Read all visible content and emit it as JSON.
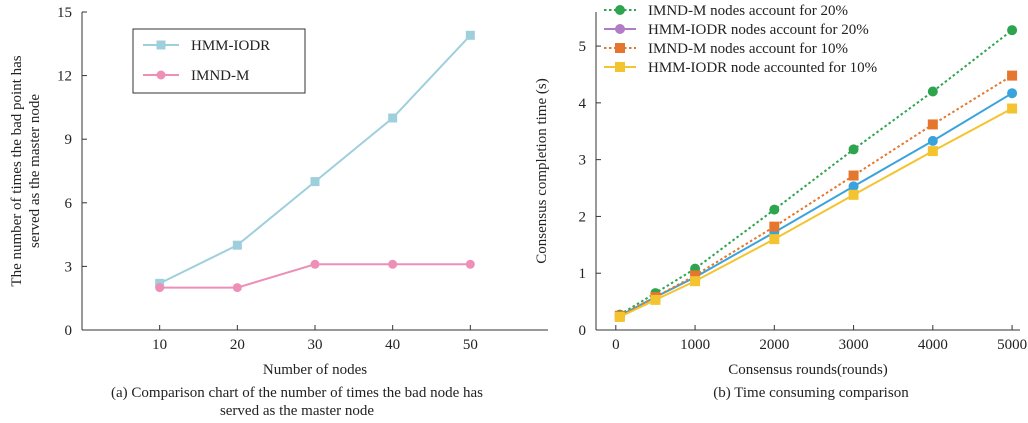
{
  "chart_data": [
    {
      "type": "line",
      "title": "",
      "xlabel": "Number of nodes",
      "ylabel_lines": [
        "The number of times the bad point has",
        "served as the master node"
      ],
      "caption_lines": [
        "(a) Comparison chart of the number of times the bad node has",
        "served as the master node"
      ],
      "x_ticks": [
        10,
        20,
        30,
        40,
        50
      ],
      "y_ticks": [
        0,
        3,
        6,
        9,
        12,
        15
      ],
      "xlim": [
        0,
        60
      ],
      "ylim": [
        0,
        15
      ],
      "legend_position": "top-left",
      "series": [
        {
          "name": "HMM-IODR",
          "color": "#9fcfdd",
          "marker": "square",
          "dash": "solid",
          "x": [
            10,
            20,
            30,
            40,
            50
          ],
          "values": [
            2.2,
            4.0,
            7.0,
            10.0,
            13.9
          ]
        },
        {
          "name": "IMND-M",
          "color": "#ee8fb7",
          "marker": "circle",
          "dash": "solid",
          "x": [
            10,
            20,
            30,
            40,
            50
          ],
          "values": [
            2.0,
            2.0,
            3.1,
            3.1,
            3.1
          ]
        }
      ]
    },
    {
      "type": "line",
      "title": "",
      "xlabel": "Consensus rounds(rounds)",
      "ylabel": "Consensus completion time (s)",
      "caption": "(b) Time consuming comparison",
      "x_ticks": [
        0,
        1000,
        2000,
        3000,
        4000,
        5000
      ],
      "y_ticks": [
        0,
        1,
        2,
        3,
        4,
        5
      ],
      "xlim": [
        -250,
        5100
      ],
      "ylim": [
        0,
        5.6
      ],
      "legend_position": "top-left",
      "series": [
        {
          "name": "IMND-M nodes account for 20%",
          "color": "#2ea44f",
          "marker": "circle",
          "dash": "dotted",
          "x": [
            50,
            500,
            1000,
            2000,
            3000,
            4000,
            5000
          ],
          "values": [
            0.27,
            0.65,
            1.08,
            2.12,
            3.18,
            4.2,
            5.28
          ]
        },
        {
          "name": " HMM-IODR nodes account for 20%",
          "color": "#3ba3dc",
          "marker": "circle",
          "dash": "solid",
          "legend_color": "#b07cc6",
          "x": [
            50,
            500,
            1000,
            2000,
            3000,
            4000,
            5000
          ],
          "values": [
            0.25,
            0.58,
            0.93,
            1.72,
            2.53,
            3.33,
            4.17
          ]
        },
        {
          "name": "IMND-M nodes account for 10%",
          "color": "#e5762d",
          "marker": "square",
          "dash": "dotted",
          "x": [
            50,
            500,
            1000,
            2000,
            3000,
            4000,
            5000
          ],
          "values": [
            0.25,
            0.58,
            0.96,
            1.82,
            2.72,
            3.62,
            4.48
          ]
        },
        {
          "name": "HMM-IODR node accounted for 10%",
          "color": "#f4c430",
          "marker": "square",
          "dash": "solid",
          "x": [
            50,
            500,
            1000,
            2000,
            3000,
            4000,
            5000
          ],
          "values": [
            0.23,
            0.53,
            0.86,
            1.6,
            2.38,
            3.15,
            3.9
          ]
        }
      ]
    }
  ]
}
